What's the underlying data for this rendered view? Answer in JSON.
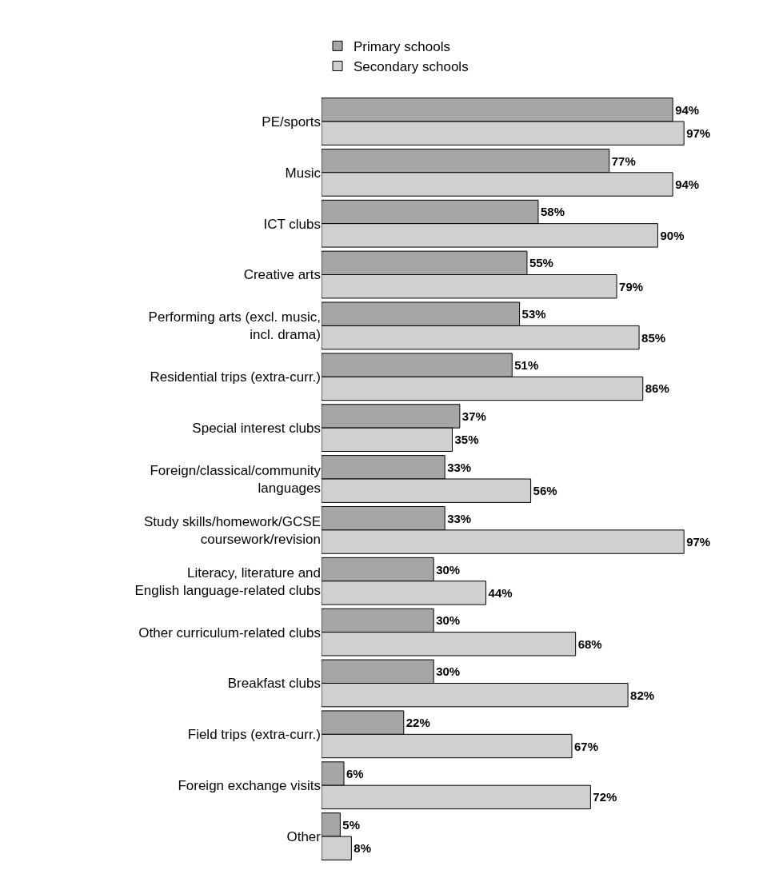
{
  "chart_data": {
    "type": "bar",
    "orientation": "horizontal",
    "legend": "top",
    "grid": false,
    "tick_labels": "y",
    "categories": [
      "PE/sports",
      "Music",
      "ICT clubs",
      "Creative arts",
      "Performing arts (excl. music, incl. drama)",
      "Residential trips (extra-curr.)",
      "Special interest clubs",
      "Foreign/classical/community languages",
      "Study skills/homework/GCSE coursework/revision",
      "Literacy, literature and English language-related clubs",
      "Other curriculum-related clubs",
      "Breakfast clubs",
      "Field trips (extra-curr.)",
      "Foreign exchange visits",
      "Other"
    ],
    "series": [
      {
        "name": "Primary schools",
        "color": "#a6a6a6",
        "values": [
          94,
          77,
          58,
          55,
          53,
          51,
          37,
          33,
          33,
          30,
          30,
          30,
          22,
          6,
          5
        ],
        "value_labels": [
          "94%",
          "77%",
          "58%",
          "55%",
          "53%",
          "51%",
          "37%",
          "33%",
          "33%",
          "30%",
          "30%",
          "30%",
          "22%",
          "6%",
          "5%"
        ]
      },
      {
        "name": "Secondary schools",
        "color": "#d0d0d0",
        "values": [
          97,
          94,
          90,
          79,
          85,
          86,
          35,
          56,
          97,
          44,
          68,
          82,
          67,
          72,
          8
        ],
        "value_labels": [
          "97%",
          "94%",
          "90%",
          "79%",
          "85%",
          "86%",
          "35%",
          "56%",
          "97%",
          "44%",
          "68%",
          "82%",
          "67%",
          "72%",
          "8%"
        ]
      }
    ]
  }
}
